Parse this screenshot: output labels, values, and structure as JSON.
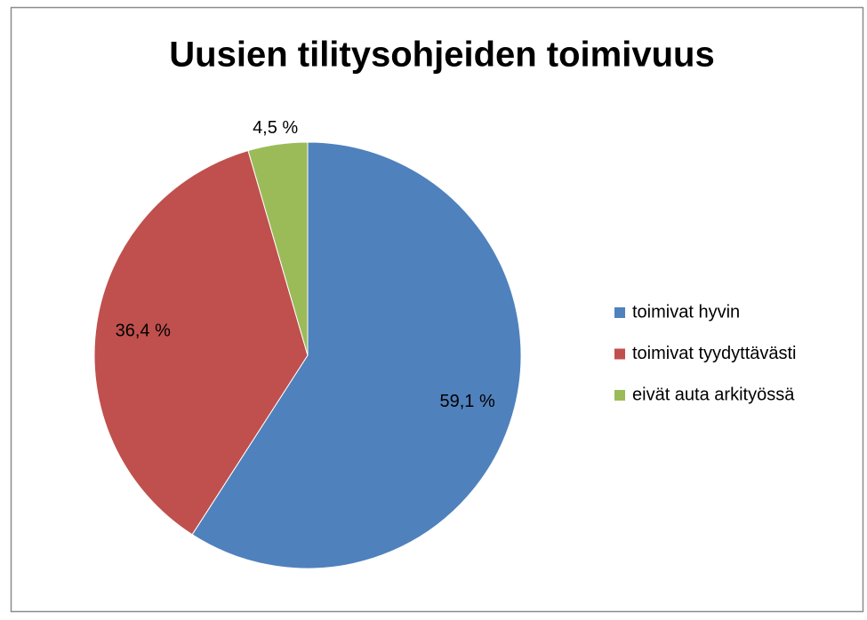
{
  "chart_data": {
    "type": "pie",
    "title": "Uusien tilitysohjeiden toimivuus",
    "categories": [
      "toimivat hyvin",
      "toimivat tyydyttävästi",
      "eivät auta arkityössä"
    ],
    "values": [
      59.1,
      36.4,
      4.5
    ],
    "value_labels": [
      "59,1 %",
      "36,4 %",
      "4,5 %"
    ],
    "colors": [
      "#4f81bd",
      "#c0504d",
      "#9bbb59"
    ],
    "legend": "right"
  }
}
